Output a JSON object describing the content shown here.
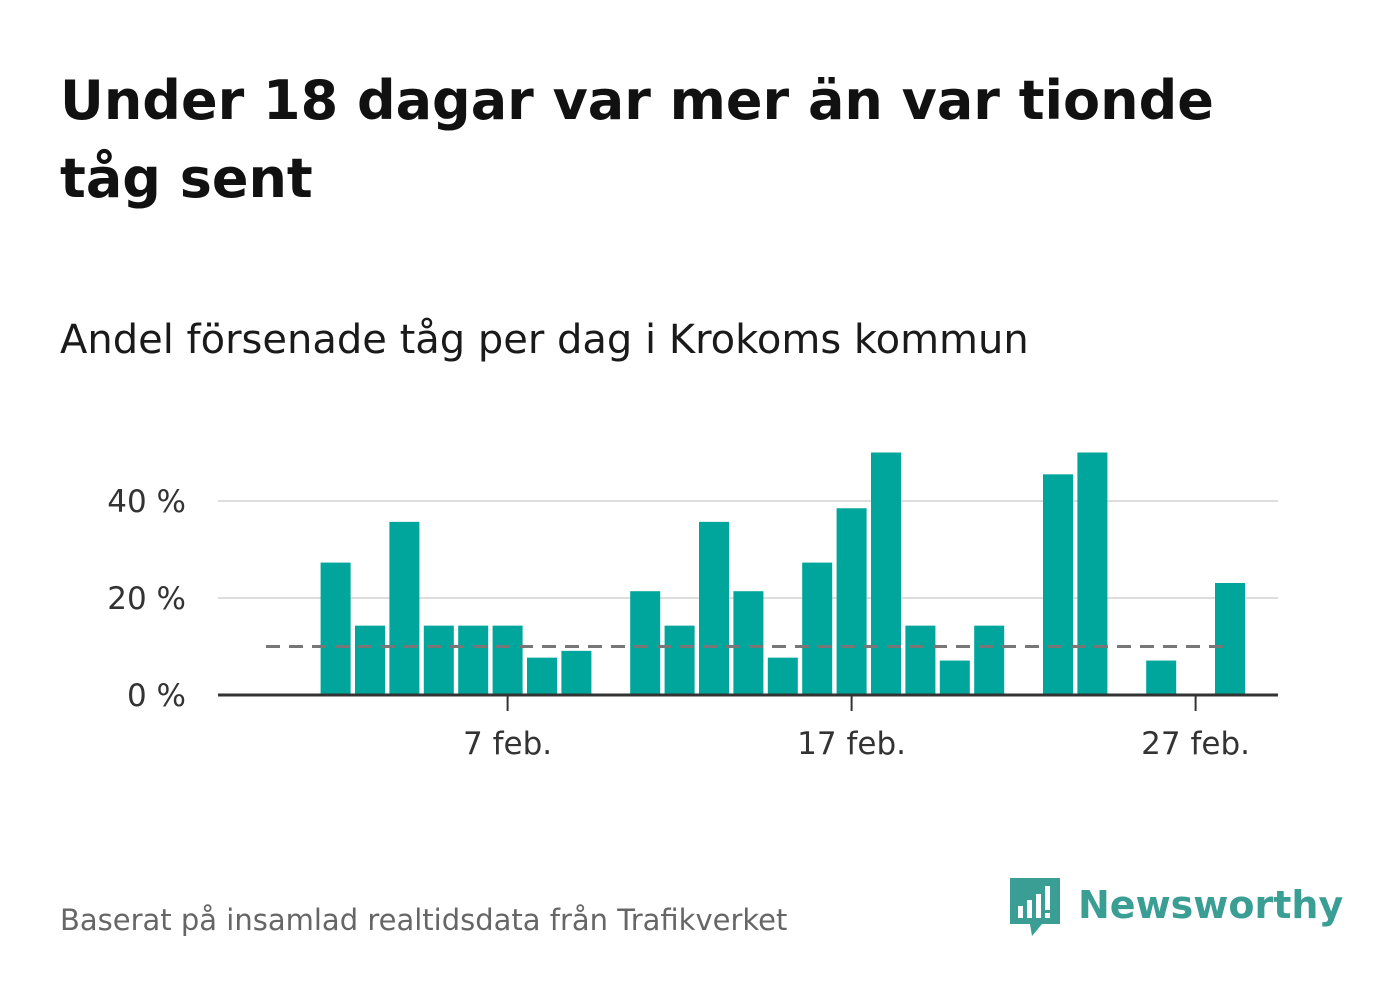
{
  "title": "Under 18 dagar var mer än var tionde tåg sent",
  "subtitle": "Andel försenade tåg per dag i Krokoms kommun",
  "source": "Baserat på insamlad realtidsdata från Trafikverket",
  "brand": {
    "name": "Newsworthy",
    "icon": "newsworthy-logo-icon",
    "color": "#3a9e95"
  },
  "colors": {
    "bar": "#00a59b",
    "reference_line": "#777777",
    "grid": "#dddddd",
    "axis": "#333333"
  },
  "chart_data": {
    "type": "bar",
    "y_unit": "%",
    "ylim": [
      0,
      50
    ],
    "y_ticks": [
      {
        "value": 0,
        "label": "0 %"
      },
      {
        "value": 20,
        "label": "20 %"
      },
      {
        "value": 40,
        "label": "40 %"
      }
    ],
    "x_ticks": [
      {
        "day": 7,
        "label": "7 feb."
      },
      {
        "day": 17,
        "label": "17 feb."
      },
      {
        "day": 27,
        "label": "27 feb."
      }
    ],
    "grid": true,
    "reference_line": {
      "value": 10,
      "style": "dashed"
    },
    "x": [
      1,
      2,
      3,
      4,
      5,
      6,
      7,
      8,
      9,
      10,
      11,
      12,
      13,
      14,
      15,
      16,
      17,
      18,
      19,
      20,
      21,
      22,
      23,
      24,
      25,
      26,
      27,
      28
    ],
    "values": [
      0,
      27.3,
      14.3,
      35.7,
      14.3,
      14.3,
      14.3,
      7.7,
      9.1,
      0,
      21.4,
      14.3,
      35.7,
      21.4,
      7.7,
      27.3,
      38.5,
      50,
      14.3,
      7.1,
      14.3,
      0,
      45.5,
      50,
      0,
      7.1,
      0,
      23.1
    ]
  }
}
